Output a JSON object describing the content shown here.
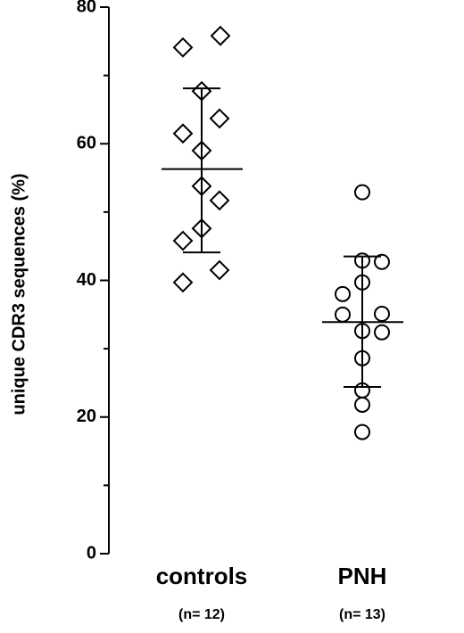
{
  "chart_data": {
    "type": "dot",
    "ylabel": "unique CDR3 sequences (%)",
    "ylim": [
      0,
      80
    ],
    "yticks": [
      0,
      20,
      40,
      60,
      80
    ],
    "yminorticks": [
      10,
      30,
      50,
      70
    ],
    "groups": [
      {
        "category": "controls",
        "n_label": "(n= 12)",
        "marker": "diamond",
        "values": [
          74.1,
          75.8,
          67.7,
          63.7,
          61.5,
          59.0,
          53.8,
          51.7,
          47.6,
          45.8,
          41.5,
          39.7
        ],
        "mean": 56.3,
        "sd_upper": 68.1,
        "sd_lower": 44.1
      },
      {
        "category": "PNH",
        "n_label": "(n= 13)",
        "marker": "circle",
        "values": [
          52.9,
          42.9,
          42.7,
          39.7,
          38.0,
          35.0,
          35.1,
          32.6,
          32.4,
          28.6,
          23.9,
          21.8,
          17.8
        ],
        "mean": 33.9,
        "sd_upper": 43.5,
        "sd_lower": 24.4
      }
    ]
  }
}
